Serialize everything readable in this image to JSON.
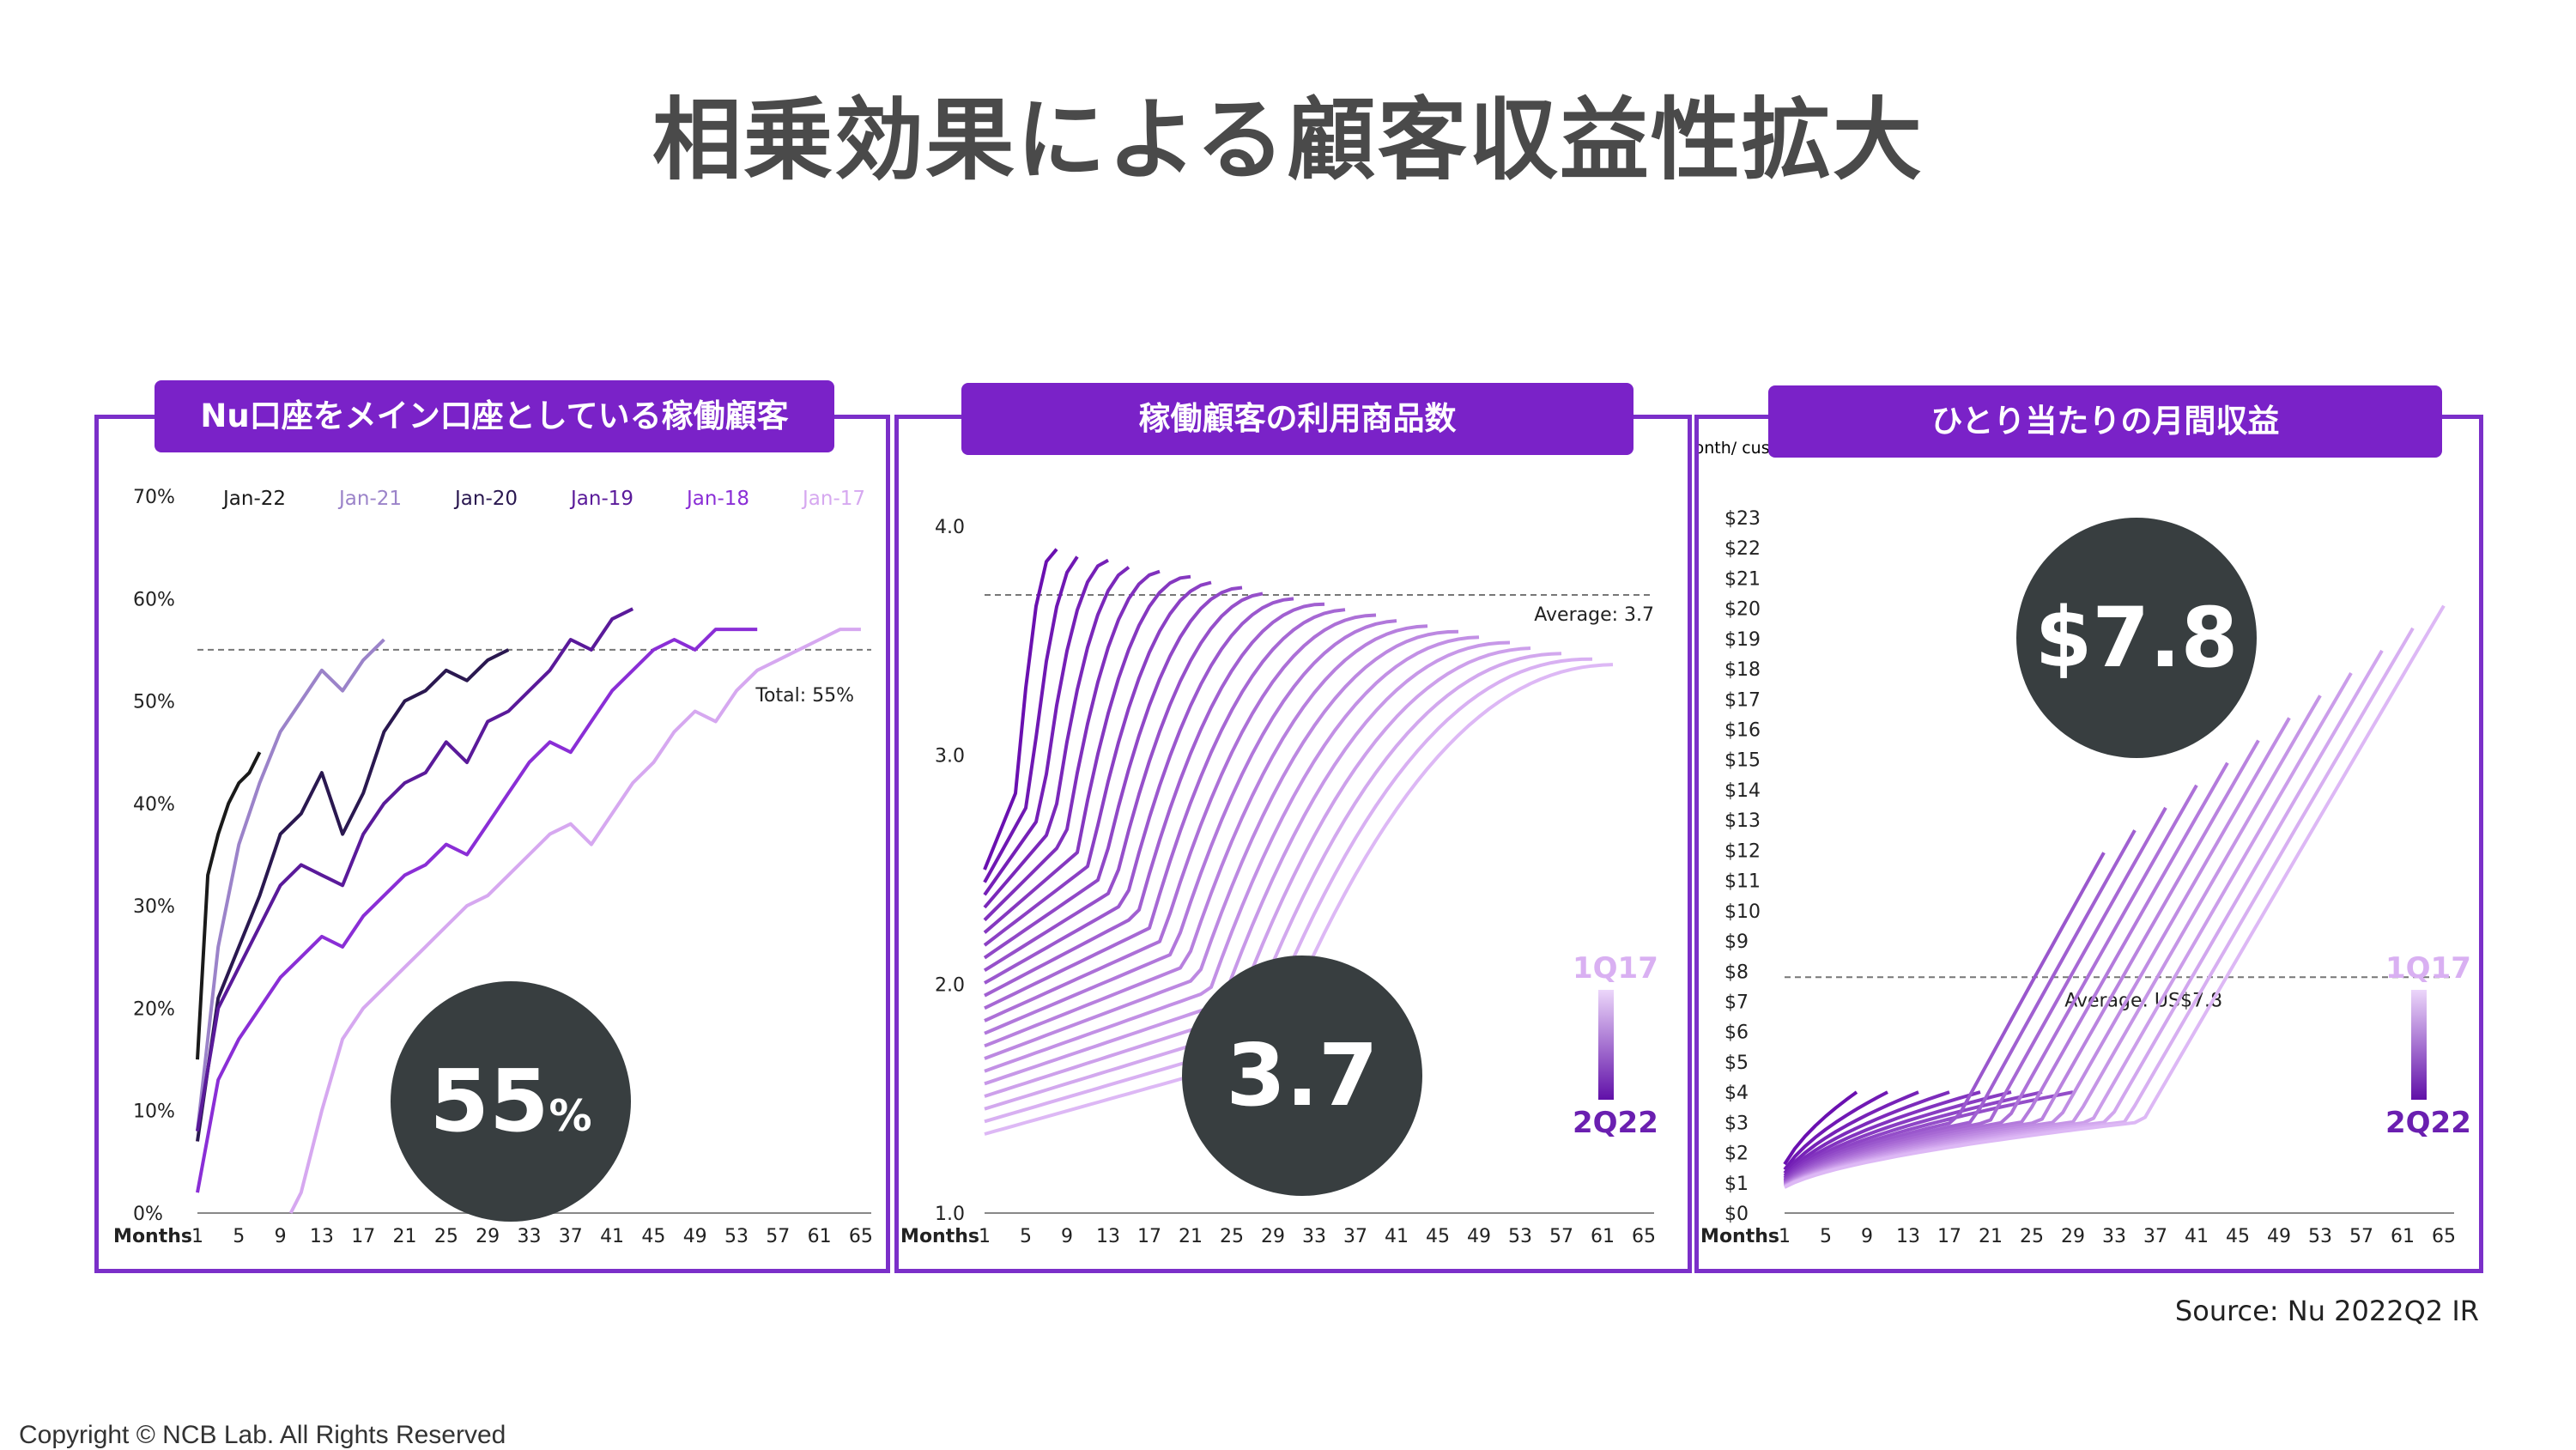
{
  "title": "相乗効果による顧客収益性拡大",
  "source": "Source: Nu 2022Q2 IR",
  "copyright": "Copyright © NCB Lab. All Rights Reserved",
  "colors": {
    "brand": "#7a22c8",
    "bubble": "#383e40",
    "title": "#4a4a4a"
  },
  "chart_data": [
    {
      "type": "line",
      "panel_label": "Nu口座をメイン口座としている稼働顧客",
      "highlight": "55",
      "highlight_unit": "%",
      "xlabel": "Months",
      "x_ticks": [
        "1",
        "5",
        "9",
        "13",
        "17",
        "21",
        "25",
        "29",
        "33",
        "37",
        "41",
        "45",
        "49",
        "53",
        "57",
        "61",
        "65"
      ],
      "y_ticks": [
        "0%",
        "10%",
        "20%",
        "30%",
        "40%",
        "50%",
        "60%",
        "70%"
      ],
      "ylim": [
        0,
        70
      ],
      "xlim": [
        1,
        66
      ],
      "average_label": "Total: 55%",
      "average_value": 55,
      "legend": "top",
      "series": [
        {
          "name": "Jan-22",
          "color": "#1a1a1a",
          "x": [
            1,
            2,
            3,
            4,
            5,
            6,
            7
          ],
          "y": [
            15,
            33,
            37,
            40,
            42,
            43,
            45
          ]
        },
        {
          "name": "Jan-21",
          "color": "#9b83c9",
          "x": [
            1,
            3,
            5,
            7,
            9,
            11,
            13,
            15,
            17,
            19
          ],
          "y": [
            8,
            26,
            36,
            42,
            47,
            50,
            53,
            51,
            54,
            56
          ]
        },
        {
          "name": "Jan-20",
          "color": "#2a1850",
          "x": [
            1,
            3,
            5,
            7,
            9,
            11,
            13,
            15,
            17,
            19,
            21,
            23,
            25,
            27,
            29,
            31
          ],
          "y": [
            7,
            21,
            26,
            31,
            37,
            39,
            43,
            37,
            41,
            47,
            50,
            51,
            53,
            52,
            54,
            55
          ]
        },
        {
          "name": "Jan-19",
          "color": "#5a1a9a",
          "x": [
            1,
            3,
            5,
            7,
            9,
            11,
            13,
            15,
            17,
            19,
            21,
            23,
            25,
            27,
            29,
            31,
            33,
            35,
            37,
            39,
            41,
            43
          ],
          "y": [
            8,
            20,
            24,
            28,
            32,
            34,
            33,
            32,
            37,
            40,
            42,
            43,
            46,
            44,
            48,
            49,
            51,
            53,
            56,
            55,
            58,
            59
          ]
        },
        {
          "name": "Jan-18",
          "color": "#8a2ed6",
          "x": [
            1,
            3,
            5,
            7,
            9,
            11,
            13,
            15,
            17,
            19,
            21,
            23,
            25,
            27,
            29,
            31,
            33,
            35,
            37,
            39,
            41,
            43,
            45,
            47,
            49,
            51,
            53,
            55
          ],
          "y": [
            2,
            13,
            17,
            20,
            23,
            25,
            27,
            26,
            29,
            31,
            33,
            34,
            36,
            35,
            38,
            41,
            44,
            46,
            45,
            48,
            51,
            53,
            55,
            56,
            55,
            57,
            57,
            57
          ]
        },
        {
          "name": "Jan-17",
          "color": "#d6a8f0",
          "x": [
            10,
            11,
            13,
            15,
            17,
            19,
            21,
            23,
            25,
            27,
            29,
            31,
            33,
            35,
            37,
            39,
            41,
            43,
            45,
            47,
            49,
            51,
            53,
            55,
            57,
            59,
            61,
            63,
            65
          ],
          "y": [
            0,
            2,
            10,
            17,
            20,
            22,
            24,
            26,
            28,
            30,
            31,
            33,
            35,
            37,
            38,
            36,
            39,
            42,
            44,
            47,
            49,
            48,
            51,
            53,
            54,
            55,
            56,
            57,
            57
          ]
        }
      ]
    },
    {
      "type": "line",
      "panel_label": "稼働顧客の利用商品数",
      "highlight": "3.7",
      "xlabel": "Months",
      "x_ticks": [
        "1",
        "5",
        "9",
        "13",
        "17",
        "21",
        "25",
        "29",
        "33",
        "37",
        "41",
        "45",
        "49",
        "53",
        "57",
        "61",
        "65"
      ],
      "y_ticks": [
        "1.0",
        "2.0",
        "3.0",
        "4.0"
      ],
      "ylim": [
        1.0,
        4.0
      ],
      "xlim": [
        1,
        66
      ],
      "average_label": "Average: 3.7",
      "average_value": 3.7,
      "legend_top": "1Q17",
      "legend_bottom": "2Q22",
      "legend": "right"
    },
    {
      "type": "line",
      "panel_label": "ひとり当たりの月間収益",
      "highlight": "$7.8",
      "ylabel": "US$ month/ customer.",
      "xlabel": "Months",
      "x_ticks": [
        "1",
        "5",
        "9",
        "13",
        "17",
        "21",
        "25",
        "29",
        "33",
        "37",
        "41",
        "45",
        "49",
        "53",
        "57",
        "61",
        "65"
      ],
      "y_ticks": [
        "$0",
        "$1",
        "$2",
        "$3",
        "$4",
        "$5",
        "$6",
        "$7",
        "$8",
        "$9",
        "$10",
        "$11",
        "$12",
        "$13",
        "$14",
        "$15",
        "$16",
        "$17",
        "$18",
        "$19",
        "$20",
        "$21",
        "$22",
        "$23"
      ],
      "ylim": [
        0,
        23
      ],
      "xlim": [
        1,
        66
      ],
      "average_label": "Average: US$7.8",
      "average_value": 7.8,
      "legend_top": "1Q17",
      "legend_bottom": "2Q22",
      "legend": "right"
    }
  ]
}
